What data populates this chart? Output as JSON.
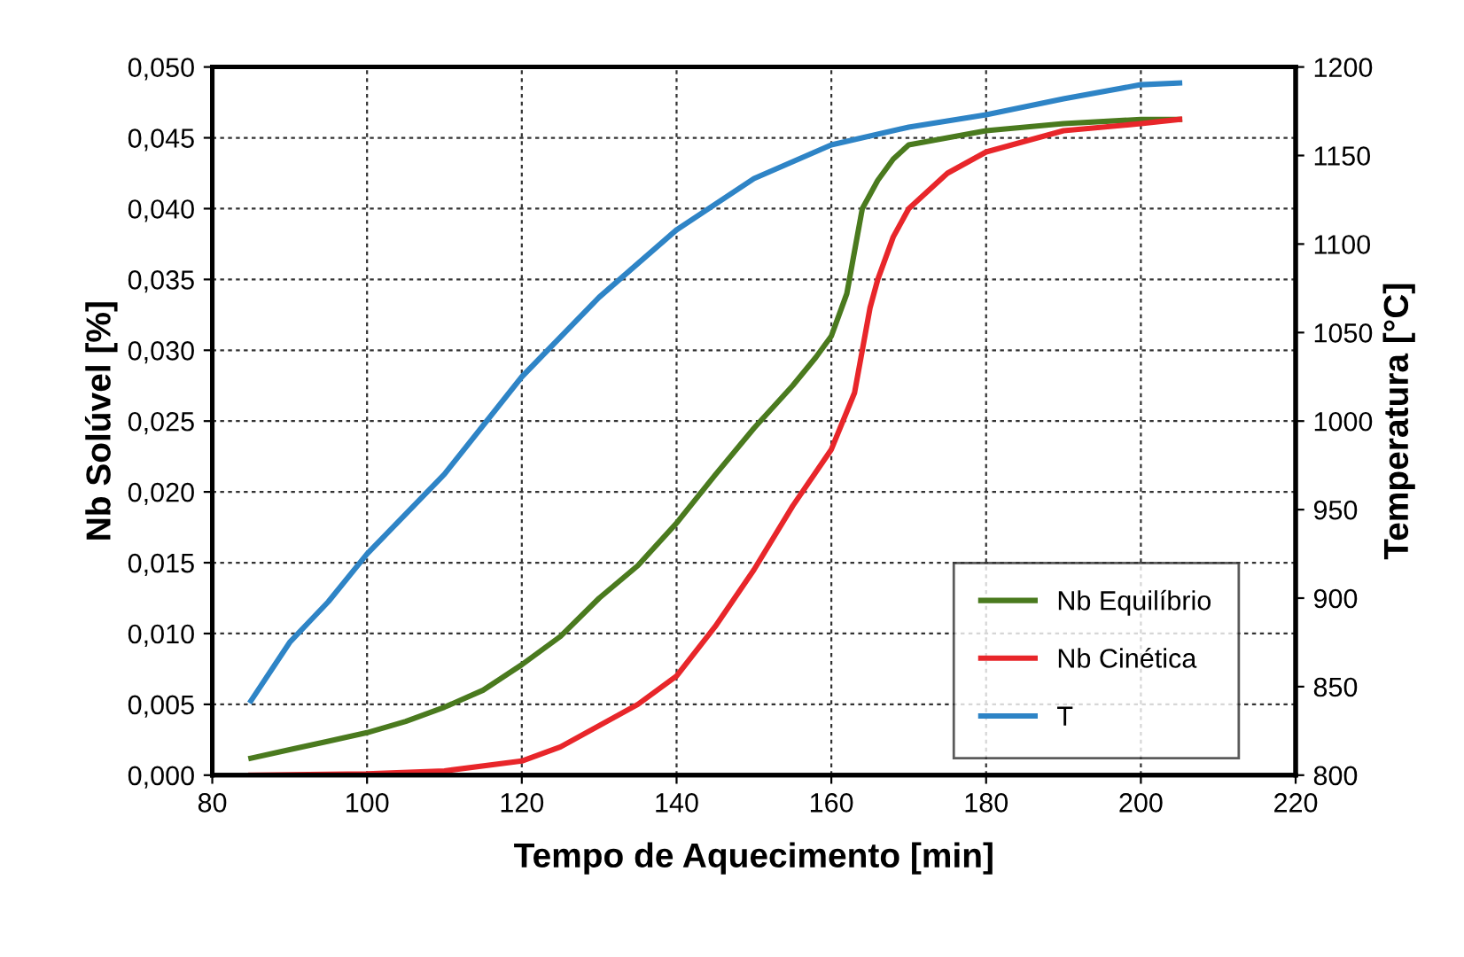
{
  "chart_data": {
    "type": "line",
    "xlabel": "Tempo de Aquecimento [min]",
    "ylabel": "Nb Solúvel [%]",
    "y2label": "Temperatura [°C]",
    "xlim": [
      80,
      220
    ],
    "xticks": [
      80,
      100,
      120,
      140,
      160,
      180,
      200,
      220
    ],
    "ylim": [
      0,
      0.05
    ],
    "yticks": [
      {
        "value": 0,
        "label": "0,000"
      },
      {
        "value": 0.005,
        "label": "0,005"
      },
      {
        "value": 0.01,
        "label": "0,010"
      },
      {
        "value": 0.015,
        "label": "0,015"
      },
      {
        "value": 0.02,
        "label": "0,020"
      },
      {
        "value": 0.025,
        "label": "0,025"
      },
      {
        "value": 0.03,
        "label": "0,030"
      },
      {
        "value": 0.035,
        "label": "0,035"
      },
      {
        "value": 0.04,
        "label": "0,040"
      },
      {
        "value": 0.045,
        "label": "0,045"
      },
      {
        "value": 0.05,
        "label": "0,050"
      }
    ],
    "y2lim": [
      800,
      1200
    ],
    "y2ticks": [
      800,
      850,
      900,
      950,
      1000,
      1050,
      1100,
      1150,
      1200
    ],
    "grid": true,
    "legend": "bottom right",
    "line_style": "solid",
    "marker": "none",
    "series": [
      {
        "name": "Nb Equilíbrio",
        "color": "#4a7a1e",
        "x": [
          85,
          90,
          95,
          100,
          105,
          110,
          115,
          120,
          125,
          130,
          135,
          140,
          145,
          150,
          155,
          158,
          160,
          162,
          163,
          164,
          166,
          168,
          170,
          175,
          180,
          190,
          200,
          205
        ],
        "values": [
          0.0012,
          0.0018,
          0.0024,
          0.003,
          0.0038,
          0.0048,
          0.006,
          0.0078,
          0.0098,
          0.0125,
          0.0148,
          0.0178,
          0.0212,
          0.0245,
          0.0275,
          0.0295,
          0.031,
          0.034,
          0.037,
          0.04,
          0.042,
          0.0435,
          0.0445,
          0.045,
          0.0455,
          0.046,
          0.0463,
          0.0463
        ]
      },
      {
        "name": "Nb Cinética",
        "color": "#e8262a",
        "x": [
          85,
          100,
          110,
          120,
          125,
          130,
          135,
          140,
          145,
          150,
          155,
          160,
          163,
          164,
          165,
          166,
          168,
          170,
          175,
          180,
          190,
          200,
          205
        ],
        "values": [
          0,
          0.0001,
          0.0003,
          0.001,
          0.002,
          0.0035,
          0.005,
          0.007,
          0.0105,
          0.0145,
          0.019,
          0.023,
          0.027,
          0.03,
          0.033,
          0.035,
          0.038,
          0.04,
          0.0425,
          0.044,
          0.0455,
          0.046,
          0.0463
        ]
      },
      {
        "name": "T",
        "color": "#2e84c6",
        "axis": "y2",
        "x": [
          85,
          90,
          95,
          100,
          110,
          120,
          130,
          140,
          150,
          160,
          170,
          180,
          190,
          200,
          205
        ],
        "values": [
          842,
          875,
          898,
          925,
          970,
          1025,
          1070,
          1108,
          1137,
          1156,
          1166,
          1173,
          1182,
          1190,
          1191
        ]
      }
    ]
  }
}
